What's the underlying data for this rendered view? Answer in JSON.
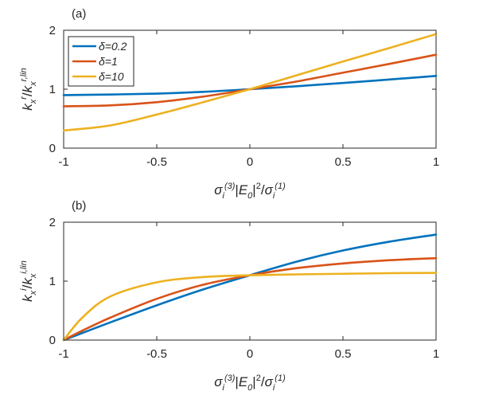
{
  "chart_data": [
    {
      "type": "line",
      "panel_label": "(a)",
      "xlabel": "σi(3)|E0|2/σi(1)",
      "ylabel": "kxr/kxr,lin",
      "xlim": [
        -1,
        1
      ],
      "ylim": [
        0,
        2
      ],
      "xticks": [
        -1,
        -0.5,
        0,
        0.5,
        1
      ],
      "xtick_labels": [
        "-1",
        "-0.5",
        "0",
        "0.5",
        "1"
      ],
      "yticks": [
        0,
        1,
        2
      ],
      "ytick_labels": [
        "0",
        "1",
        "2"
      ],
      "legend": {
        "placement": "top-left",
        "entries": [
          "δ=0.2",
          "δ=1",
          "δ=10"
        ]
      },
      "x": [
        -1,
        -0.75,
        -0.5,
        -0.25,
        0,
        0.25,
        0.5,
        0.75,
        1
      ],
      "series": [
        {
          "name": "δ=0.2",
          "color": "#0072BD",
          "values": [
            0.9,
            0.91,
            0.925,
            0.955,
            1.0,
            1.05,
            1.105,
            1.165,
            1.225
          ]
        },
        {
          "name": "δ=1",
          "color": "#D95319",
          "values": [
            0.71,
            0.725,
            0.78,
            0.875,
            1.0,
            1.13,
            1.28,
            1.43,
            1.585
          ]
        },
        {
          "name": "δ=10",
          "color": "#EDB120",
          "values": [
            0.3,
            0.385,
            0.57,
            0.78,
            1.0,
            1.235,
            1.47,
            1.7,
            1.935
          ]
        }
      ]
    },
    {
      "type": "line",
      "panel_label": "(b)",
      "xlabel": "σi(3)|E0|2/σi(1)",
      "ylabel": "kxi/kxi,lin",
      "xlim": [
        -1,
        1
      ],
      "ylim": [
        0,
        2
      ],
      "xticks": [
        -1,
        -0.5,
        0,
        0.5,
        1
      ],
      "xtick_labels": [
        "-1",
        "-0.5",
        "0",
        "0.5",
        "1"
      ],
      "yticks": [
        0,
        1,
        2
      ],
      "ytick_labels": [
        "0",
        "1",
        "2"
      ],
      "x": [
        -1,
        -0.9,
        -0.75,
        -0.5,
        -0.25,
        0,
        0.25,
        0.5,
        0.75,
        1
      ],
      "series": [
        {
          "name": "δ=0.2",
          "color": "#0072BD",
          "values": [
            0.0,
            0.12,
            0.3,
            0.59,
            0.86,
            1.1,
            1.33,
            1.52,
            1.67,
            1.79
          ]
        },
        {
          "name": "δ=1",
          "color": "#D95319",
          "values": [
            0.0,
            0.16,
            0.38,
            0.7,
            0.94,
            1.1,
            1.22,
            1.3,
            1.355,
            1.39
          ]
        },
        {
          "name": "δ=10",
          "color": "#EDB120",
          "values": [
            0.0,
            0.38,
            0.74,
            0.98,
            1.07,
            1.1,
            1.115,
            1.125,
            1.135,
            1.14
          ]
        }
      ]
    }
  ]
}
